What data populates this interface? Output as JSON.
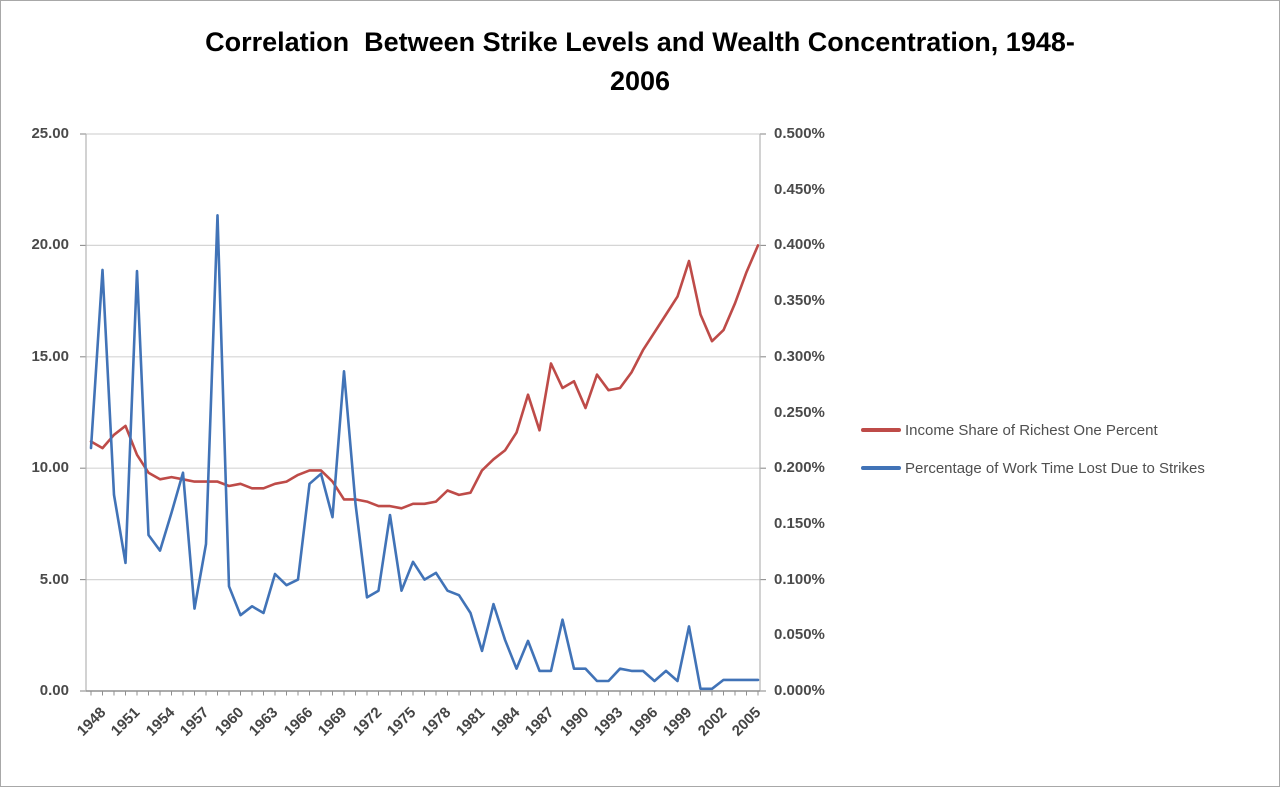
{
  "title": {
    "line1": "Correlation  Between Strike Levels and Wealth Concentration, 1948-",
    "line2": "2006"
  },
  "legend": {
    "items": [
      {
        "label": "Income Share of Richest One Percent",
        "color": "#be4b48"
      },
      {
        "label": "Percentage of Work Time Lost Due to Strikes",
        "color": "#4173b7"
      }
    ]
  },
  "colors": {
    "income_line": "#be4b48",
    "strike_line": "#4173b7",
    "gridline": "#d5d5d5",
    "axis_line": "#b3b3b3",
    "tick_mark": "#8f8f8f",
    "tick_text": "#4a4a4a",
    "title_text": "#000000"
  },
  "chart_data": {
    "type": "line",
    "title": "Correlation Between Strike Levels and Wealth Concentration, 1948-2006",
    "grid": true,
    "legend_position": "right",
    "x": [
      1948,
      1949,
      1950,
      1951,
      1952,
      1953,
      1954,
      1955,
      1956,
      1957,
      1958,
      1959,
      1960,
      1961,
      1962,
      1963,
      1964,
      1965,
      1966,
      1967,
      1968,
      1969,
      1970,
      1971,
      1972,
      1973,
      1974,
      1975,
      1976,
      1977,
      1978,
      1979,
      1980,
      1981,
      1982,
      1983,
      1984,
      1985,
      1986,
      1987,
      1988,
      1989,
      1990,
      1991,
      1992,
      1993,
      1994,
      1995,
      1996,
      1997,
      1998,
      1999,
      2000,
      2001,
      2002,
      2003,
      2004,
      2005,
      2006
    ],
    "x_tick_labels": [
      "1948",
      "1951",
      "1954",
      "1957",
      "1960",
      "1963",
      "1966",
      "1969",
      "1972",
      "1975",
      "1978",
      "1981",
      "1984",
      "1987",
      "1990",
      "1993",
      "1996",
      "1999",
      "2002",
      "2005"
    ],
    "left_axis": {
      "min": 0,
      "max": 25,
      "tick_labels": [
        "25.00",
        "20.00",
        "15.00",
        "10.00",
        "5.00",
        "0.00"
      ]
    },
    "right_axis": {
      "min": 0,
      "max": 0.5,
      "tick_labels": [
        "0.500%",
        "0.450%",
        "0.400%",
        "0.350%",
        "0.300%",
        "0.250%",
        "0.200%",
        "0.150%",
        "0.100%",
        "0.050%",
        "0.000%"
      ]
    },
    "series": [
      {
        "name": "Income Share of Richest One Percent",
        "axis": "left",
        "color": "#be4b48",
        "units": "percent of total income (left scale)",
        "values": [
          11.2,
          10.9,
          11.5,
          11.9,
          10.6,
          9.8,
          9.5,
          9.6,
          9.5,
          9.4,
          9.4,
          9.4,
          9.2,
          9.3,
          9.1,
          9.1,
          9.3,
          9.4,
          9.7,
          9.9,
          9.9,
          9.4,
          8.6,
          8.6,
          8.5,
          8.3,
          8.3,
          8.2,
          8.4,
          8.4,
          8.5,
          9.0,
          8.8,
          8.9,
          9.9,
          10.4,
          10.8,
          11.6,
          13.3,
          11.7,
          14.7,
          13.6,
          13.9,
          12.7,
          14.2,
          13.5,
          13.6,
          14.3,
          15.3,
          16.1,
          16.9,
          17.7,
          19.3,
          16.9,
          15.7,
          16.2,
          17.4,
          18.8,
          20.0
        ]
      },
      {
        "name": "Percentage of Work Time Lost Due to Strikes",
        "axis": "right",
        "color": "#4173b7",
        "units": "percent of work time (right scale)",
        "values": [
          0.218,
          0.378,
          0.176,
          0.115,
          0.377,
          0.14,
          0.126,
          0.16,
          0.196,
          0.074,
          0.132,
          0.427,
          0.094,
          0.068,
          0.076,
          0.07,
          0.105,
          0.095,
          0.1,
          0.186,
          0.195,
          0.156,
          0.287,
          0.168,
          0.084,
          0.09,
          0.158,
          0.09,
          0.116,
          0.1,
          0.106,
          0.09,
          0.086,
          0.07,
          0.036,
          0.078,
          0.046,
          0.02,
          0.045,
          0.018,
          0.018,
          0.064,
          0.02,
          0.02,
          0.009,
          0.009,
          0.02,
          0.018,
          0.018,
          0.009,
          0.018,
          0.009,
          0.058,
          0.002,
          0.002,
          0.01,
          0.01,
          0.01,
          0.01
        ]
      }
    ]
  }
}
